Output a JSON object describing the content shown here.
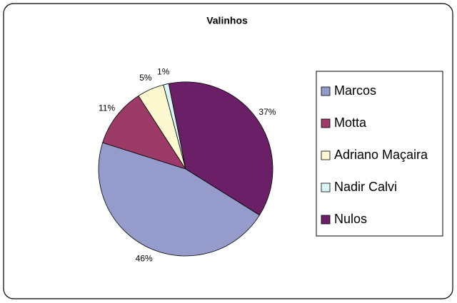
{
  "chart_data": {
    "type": "pie",
    "title": "Valinhos",
    "categories": [
      "Marcos",
      "Motta",
      "Adriano Maçaira",
      "Nadir Calvi",
      "Nulos"
    ],
    "values": [
      46,
      11,
      5,
      1,
      37
    ],
    "value_labels": [
      "46%",
      "11%",
      "5%",
      "1%",
      "37%"
    ],
    "colors": [
      "#959ccc",
      "#9c3a68",
      "#fcf8cf",
      "#d8f4f4",
      "#6a1f66"
    ],
    "legend": "right"
  }
}
